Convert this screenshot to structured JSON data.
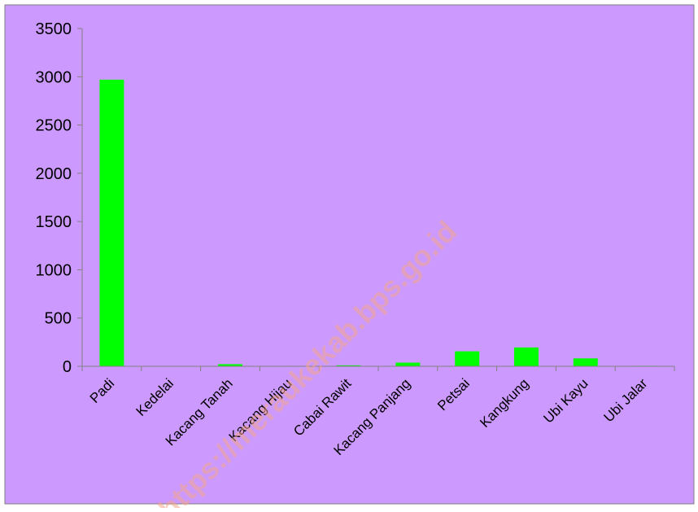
{
  "chart_data": {
    "type": "bar",
    "categories": [
      "Padi",
      "Kedelai",
      "Kacang Tanah",
      "Kacang Hijau",
      "Cabai Rawit",
      "Kacang Panjang",
      "Petsai",
      "Kangkung",
      "Ubi Kayu",
      "Ubi Jalar"
    ],
    "series": [
      {
        "values": [
          2970,
          0,
          22,
          0,
          10,
          38,
          155,
          195,
          82,
          5
        ]
      }
    ],
    "yticks": [
      "0",
      "500",
      "1000",
      "1500",
      "2000",
      "2500",
      "3000",
      "3500"
    ],
    "ylim": [
      0,
      3500
    ],
    "grid": false,
    "legend": "none",
    "title": "",
    "xlabel": "",
    "ylabel": "",
    "colors": {
      "background": "#cc99ff",
      "bar": "#00ff00",
      "border": "#7f7f7f",
      "axis": "#808080",
      "watermark": "#f2a58a"
    }
  },
  "watermark": "https://meraukekab.bps.go.id"
}
